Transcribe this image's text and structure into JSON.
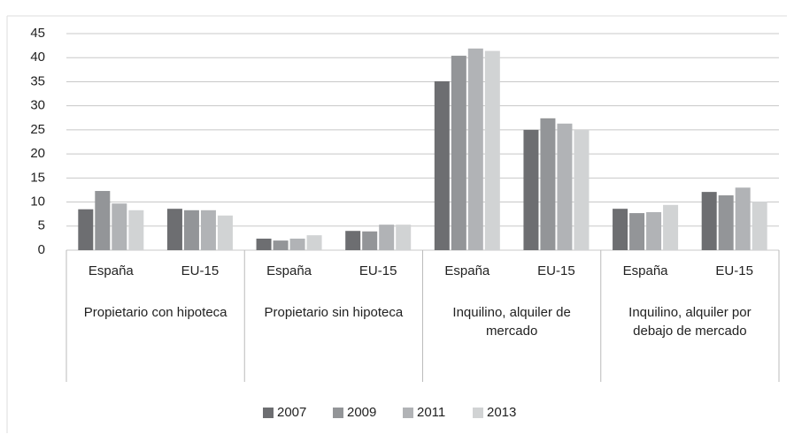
{
  "chart_data": {
    "type": "bar",
    "categories": [
      "España",
      "EU-15",
      "España",
      "EU-15",
      "España",
      "EU-15",
      "España",
      "EU-15"
    ],
    "groups": [
      "Propietario con hipoteca",
      "Propietario sin hipoteca",
      "Inquilino, alquiler de mercado",
      "Inquilino, alquiler por debajo de mercado"
    ],
    "series": [
      {
        "name": "2007",
        "color": "#6d6e71",
        "values": [
          8.5,
          8.6,
          2.4,
          4.0,
          35.1,
          25.0,
          8.6,
          12.1
        ]
      },
      {
        "name": "2009",
        "color": "#939598",
        "values": [
          12.3,
          8.3,
          2.0,
          3.9,
          40.4,
          27.4,
          7.7,
          11.4
        ]
      },
      {
        "name": "2011",
        "color": "#b1b3b6",
        "values": [
          9.7,
          8.3,
          2.4,
          5.3,
          41.9,
          26.3,
          7.9,
          13.0
        ]
      },
      {
        "name": "2013",
        "color": "#d1d3d4",
        "values": [
          8.3,
          7.2,
          3.1,
          5.3,
          41.4,
          25.0,
          9.4,
          10.1
        ]
      }
    ],
    "ylim": [
      0,
      45
    ],
    "yticks": [
      0,
      5,
      10,
      15,
      20,
      25,
      30,
      35,
      40,
      45
    ],
    "grid": true,
    "legend": "bottom"
  }
}
